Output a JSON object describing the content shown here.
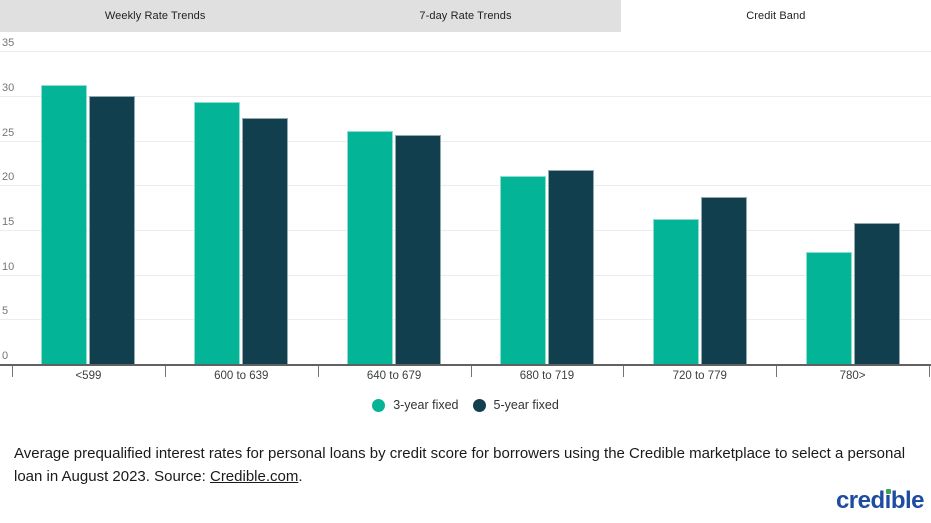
{
  "tabs": [
    {
      "label": "Weekly Rate Trends",
      "active": false
    },
    {
      "label": "7-day Rate Trends",
      "active": false
    },
    {
      "label": "Credit Band",
      "active": true
    }
  ],
  "chart_data": {
    "type": "bar",
    "categories": [
      "<599",
      "600 to 639",
      "640 to 679",
      "680 to 719",
      "720 to 779",
      "780>"
    ],
    "series": [
      {
        "name": "3-year fixed",
        "color": "#04b497",
        "values": [
          31.4,
          29.4,
          26.2,
          21.2,
          16.4,
          12.7
        ]
      },
      {
        "name": "5-year fixed",
        "color": "#123f4e",
        "values": [
          30.1,
          27.7,
          25.7,
          21.8,
          18.8,
          15.9
        ]
      }
    ],
    "ylim": [
      0,
      35
    ],
    "ytick_step": 5,
    "grid": true,
    "legend_position": "bottom"
  },
  "caption": {
    "text": "Average prequalified interest rates for personal loans by credit score for borrowers using the Credible marketplace to select a personal loan in August 2023. Source: ",
    "link_text": "Credible.com",
    "suffix": "."
  },
  "logo": {
    "text": "credible"
  },
  "colors": {
    "tab_bar_bg": "#e0e0e0",
    "active_tab_bg": "#ffffff",
    "series_teal": "#04b497",
    "series_dark": "#123f4e",
    "gridline": "#ececec",
    "axis": "#616161",
    "logo_blue": "#1e4ca1",
    "logo_green": "#3aa556"
  }
}
